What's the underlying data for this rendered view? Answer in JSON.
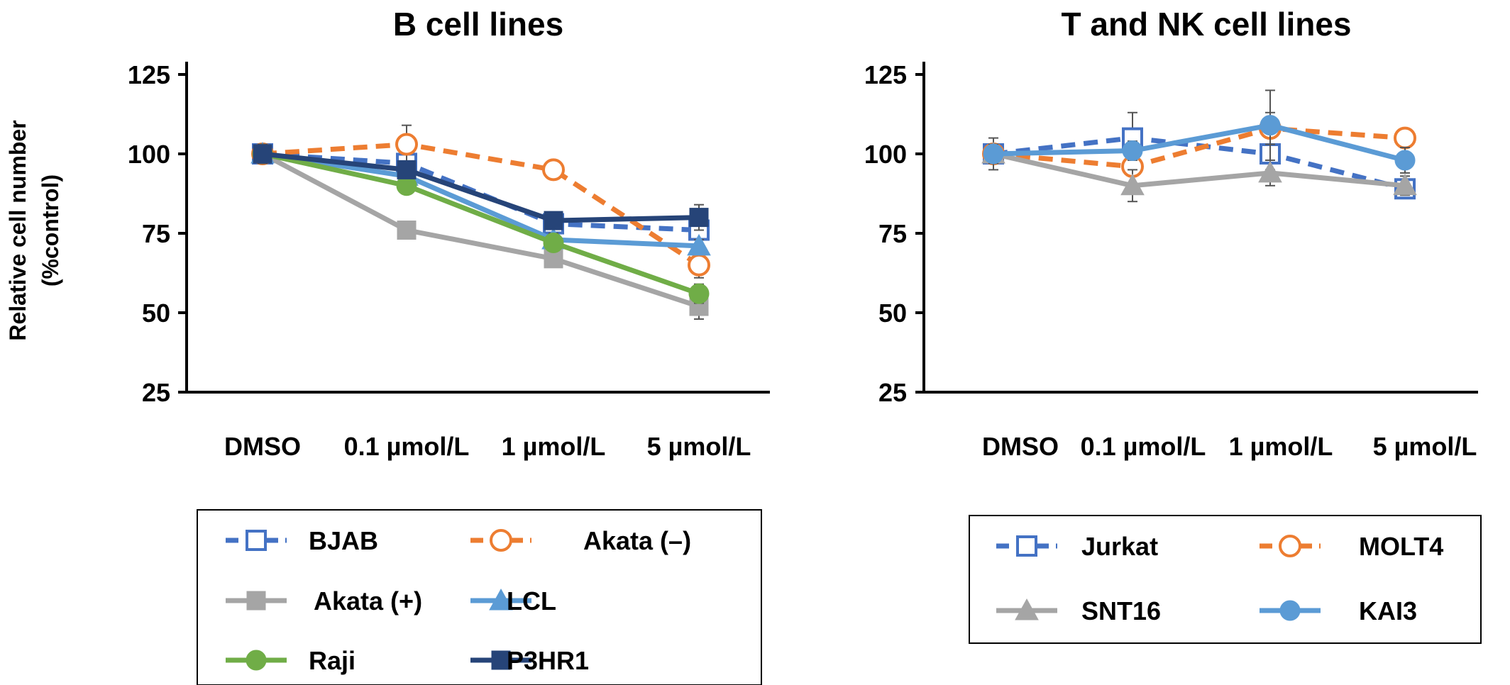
{
  "ylabel_line1": "Relative cell number",
  "ylabel_line2": "(%control)",
  "chart_data": [
    {
      "type": "line",
      "title": "B cell lines",
      "ylabel": "Relative cell number (%control)",
      "categories": [
        "DMSO",
        "0.1 µmol/L",
        "1 µmol/L",
        "5 µmol/L"
      ],
      "ylim": [
        25,
        125
      ],
      "yticks": [
        25,
        50,
        75,
        100,
        125
      ],
      "grid": false,
      "legend_position": "bottom",
      "series": [
        {
          "name": "BJAB",
          "values": [
            100,
            97,
            78,
            76
          ],
          "errors": [
            2,
            3,
            2,
            3
          ],
          "color": "#4472C4",
          "marker": "square-open",
          "dashed": true
        },
        {
          "name": "Akata (–)",
          "values": [
            100,
            103,
            95,
            65
          ],
          "errors": [
            2,
            6,
            2,
            4
          ],
          "color": "#ED7D31",
          "marker": "circle-open",
          "dashed": true
        },
        {
          "name": "Akata (+)",
          "values": [
            100,
            76,
            67,
            52
          ],
          "errors": [
            2,
            2,
            2,
            4
          ],
          "color": "#A5A5A5",
          "marker": "square",
          "dashed": false
        },
        {
          "name": "LCL",
          "values": [
            100,
            93,
            73,
            71
          ],
          "errors": [
            2,
            2,
            2,
            2
          ],
          "color": "#5B9BD5",
          "marker": "triangle",
          "dashed": false
        },
        {
          "name": "Raji",
          "values": [
            100,
            90,
            72,
            56
          ],
          "errors": [
            2,
            2,
            2,
            3
          ],
          "color": "#70AD47",
          "marker": "circle",
          "dashed": false
        },
        {
          "name": "P3HR1",
          "values": [
            100,
            95,
            79,
            80
          ],
          "errors": [
            3,
            2,
            2,
            4
          ],
          "color": "#264478",
          "marker": "square",
          "dashed": false
        }
      ]
    },
    {
      "type": "line",
      "title": "T and NK cell lines",
      "ylabel": "",
      "categories": [
        "DMSO",
        "0.1 µmol/L",
        "1 µmol/L",
        "5 µmol/L"
      ],
      "ylim": [
        25,
        125
      ],
      "yticks": [
        25,
        50,
        75,
        100,
        125
      ],
      "grid": false,
      "legend_position": "bottom",
      "series": [
        {
          "name": "Jurkat",
          "values": [
            100,
            105,
            100,
            89
          ],
          "errors": [
            3,
            8,
            5,
            3
          ],
          "color": "#4472C4",
          "marker": "square-open",
          "dashed": true
        },
        {
          "name": "MOLT4",
          "values": [
            100,
            96,
            108,
            105
          ],
          "errors": [
            2,
            3,
            5,
            2
          ],
          "color": "#ED7D31",
          "marker": "circle-open",
          "dashed": true
        },
        {
          "name": "SNT16",
          "values": [
            100,
            90,
            94,
            90
          ],
          "errors": [
            5,
            5,
            4,
            3
          ],
          "color": "#A5A5A5",
          "marker": "triangle",
          "dashed": false
        },
        {
          "name": "KAI3",
          "values": [
            100,
            101,
            109,
            98
          ],
          "errors": [
            3,
            3,
            11,
            4
          ],
          "color": "#5B9BD5",
          "marker": "circle",
          "dashed": false
        }
      ]
    }
  ]
}
